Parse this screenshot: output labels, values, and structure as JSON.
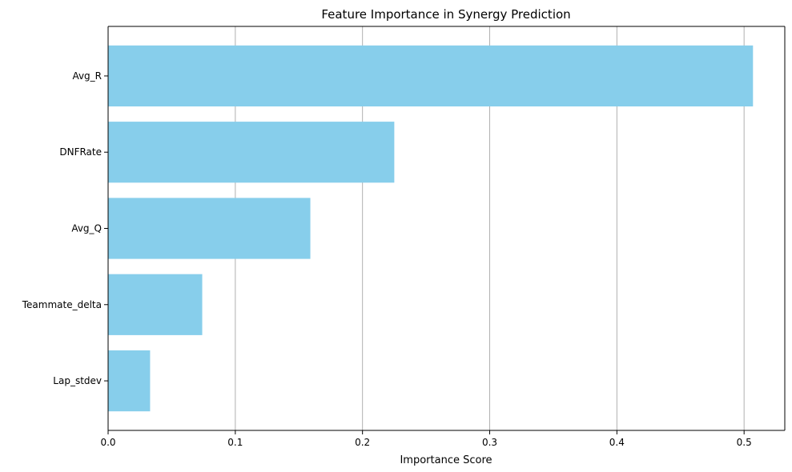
{
  "chart_data": {
    "type": "bar",
    "orientation": "horizontal",
    "title": "Feature Importance in Synergy Prediction",
    "xlabel": "Importance Score",
    "ylabel": "",
    "categories": [
      "Avg_R",
      "DNFRate",
      "Avg_Q",
      "Teammate_delta",
      "Lap_stdev"
    ],
    "values": [
      0.507,
      0.225,
      0.159,
      0.074,
      0.033
    ],
    "xlim": [
      0,
      0.532
    ],
    "xticks": [
      0.0,
      0.1,
      0.2,
      0.3,
      0.4,
      0.5
    ],
    "xtick_labels": [
      "0.0",
      "0.1",
      "0.2",
      "0.3",
      "0.4",
      "0.5"
    ],
    "grid": "x-axis vertical lines",
    "bar_color": "#87ceeb",
    "grid_color": "#b0b0b0",
    "legend": "none"
  }
}
